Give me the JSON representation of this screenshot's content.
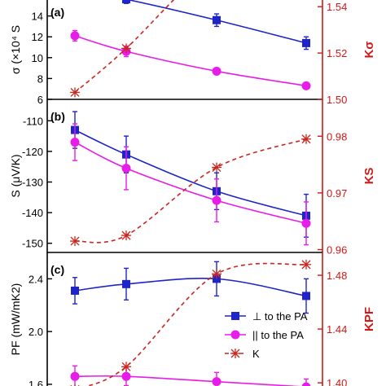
{
  "colors": {
    "perp": "#1f24c8",
    "para": "#e81ce8",
    "k": "#c8261e",
    "right_axis": "#d01818",
    "axis": "#000000"
  },
  "chart_data": [
    {
      "type": "line",
      "panel": "(a)",
      "categories": [
        "1",
        "2",
        "3",
        "4"
      ],
      "left_ylabel": "σ (×10⁴ S",
      "right_ylabel": "Kσ",
      "left_ylim": [
        6,
        16
      ],
      "left_ticks": [
        "6",
        "8",
        "10",
        "12",
        "14"
      ],
      "right_ylim": [
        1.5,
        1.545
      ],
      "right_ticks": [
        "1.50",
        "1.52",
        "1.54"
      ],
      "series": [
        {
          "key": "perp",
          "axis": "left",
          "marker": "square",
          "values": [
            16.5,
            15.6,
            13.6,
            11.4
          ],
          "err": [
            0.4,
            0.4,
            0.6,
            0.6
          ]
        },
        {
          "key": "para",
          "axis": "left",
          "marker": "circle",
          "values": [
            12.1,
            10.6,
            8.7,
            7.3
          ],
          "err": [
            0.5,
            0.5,
            0.3,
            0.2
          ]
        },
        {
          "key": "k",
          "axis": "right",
          "marker": "star",
          "dashed": true,
          "values": [
            1.503,
            1.522,
            1.56,
            1.58
          ]
        }
      ]
    },
    {
      "type": "line",
      "panel": "(b)",
      "categories": [
        "1",
        "2",
        "3",
        "4"
      ],
      "left_ylabel": "S (μV/K)",
      "right_ylabel": "KS",
      "left_ylim": [
        -153,
        -103
      ],
      "left_ticks": [
        "-110",
        "-120",
        "-130",
        "-140",
        "-150"
      ],
      "right_ylim": [
        0.9595,
        0.9865
      ],
      "right_ticks": [
        "0.96",
        "0.97",
        "0.98"
      ],
      "series": [
        {
          "key": "perp",
          "axis": "left",
          "marker": "square",
          "values": [
            -113,
            -121,
            -133,
            -141
          ],
          "err": [
            6,
            6,
            6,
            7
          ]
        },
        {
          "key": "para",
          "axis": "left",
          "marker": "circle",
          "values": [
            -117,
            -125.5,
            -136,
            -143.5
          ],
          "err": [
            6,
            7,
            7,
            7
          ]
        },
        {
          "key": "k",
          "axis": "right",
          "marker": "star",
          "dashed": true,
          "values": [
            0.9615,
            0.9625,
            0.9745,
            0.9795
          ]
        }
      ]
    },
    {
      "type": "line",
      "panel": "(c)",
      "categories": [
        "1",
        "2",
        "3",
        "4"
      ],
      "left_ylabel": "PF (mW/mK2)",
      "right_ylabel": "KPF",
      "left_ylim": [
        1.55,
        2.6
      ],
      "left_ticks": [
        "1.6",
        "2.0",
        "2.4"
      ],
      "right_ylim": [
        1.394,
        1.497
      ],
      "right_ticks": [
        "1.40",
        "1.44",
        "1.48"
      ],
      "series": [
        {
          "key": "perp",
          "name": "⊥ to the PA",
          "axis": "left",
          "marker": "square",
          "values": [
            2.31,
            2.36,
            2.4,
            2.27
          ],
          "err": [
            0.1,
            0.12,
            0.13,
            0.13
          ]
        },
        {
          "key": "para",
          "name": "|| to the PA",
          "axis": "left",
          "marker": "circle",
          "values": [
            1.66,
            1.66,
            1.62,
            1.58
          ],
          "err": [
            0.08,
            0.07,
            0.07,
            0.06
          ]
        },
        {
          "key": "k",
          "name": "K",
          "axis": "right",
          "marker": "star",
          "dashed": true,
          "values": [
            1.395,
            1.412,
            1.481,
            1.488
          ]
        }
      ]
    }
  ],
  "legend": {
    "placement": "bottom-right",
    "items": [
      "⊥ to the PA",
      "|| to the PA",
      "K"
    ]
  }
}
